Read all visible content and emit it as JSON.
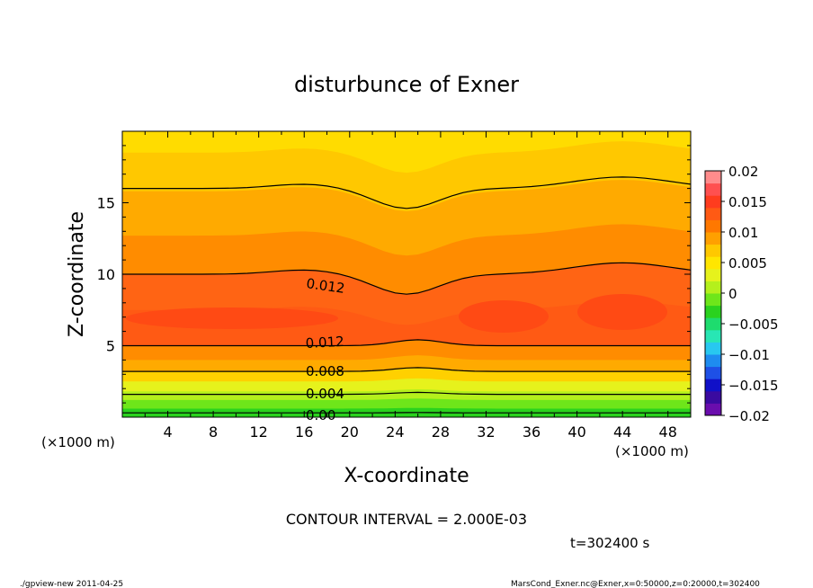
{
  "chart_data": {
    "type": "contour",
    "title": "disturbunce of Exner",
    "xlabel": "X-coordinate",
    "ylabel": "Z-coordinate",
    "x_unit_left": "(×1000 m)",
    "x_unit_right": "(×1000 m)",
    "x_ticks": [
      4,
      8,
      12,
      16,
      20,
      24,
      28,
      32,
      36,
      40,
      44,
      48
    ],
    "y_ticks": [
      5,
      10,
      15
    ],
    "xlim": [
      0,
      50
    ],
    "ylim": [
      0,
      20
    ],
    "colorbar": {
      "ticks": [
        "0.02",
        "0.015",
        "0.01",
        "0.005",
        "0",
        "−0.005",
        "−0.01",
        "−0.015",
        "−0.02"
      ],
      "range": [
        -0.02,
        0.02
      ],
      "colors": [
        "#6a0dad",
        "#3a0aa0",
        "#1010c8",
        "#1e50e6",
        "#1e8cf0",
        "#28c8f0",
        "#28e6b4",
        "#1edc6e",
        "#2ad21e",
        "#6ee61a",
        "#b4f01c",
        "#e6f21c",
        "#ffe600",
        "#ffc800",
        "#ffa000",
        "#ff7800",
        "#ff5a14",
        "#ff3c1e",
        "#ff5050",
        "#ff8c8c"
      ]
    },
    "contour_interval": "CONTOUR INTERVAL = 2.000E-03",
    "contour_labels": [
      "0.012",
      "0.012",
      "0.008",
      "0.004",
      "0.00"
    ],
    "time_label": "t=302400 s",
    "footer_left": "./gpview-new  2011-04-25",
    "footer_right": "MarsCond_Exner.nc@Exner,x=0:50000,z=0:20000,t=302400",
    "bands": [
      {
        "z_top": 20.0,
        "color": "#ffdc00"
      },
      {
        "z_top": 18.5,
        "color": "#ffc800"
      },
      {
        "z_top": 15.8,
        "color": "#ffaa00"
      },
      {
        "z_top": 12.7,
        "color": "#ff8c00"
      },
      {
        "z_top": 10.0,
        "color": "#ff6414"
      },
      {
        "z_top": 7.5,
        "color": "#ff5a14"
      },
      {
        "z_top": 5.0,
        "color": "#ff8c00"
      },
      {
        "z_top": 4.0,
        "color": "#ffaa00"
      },
      {
        "z_top": 3.2,
        "color": "#ffd000"
      },
      {
        "z_top": 2.5,
        "color": "#e6f21c"
      },
      {
        "z_top": 1.8,
        "color": "#b4f01c"
      },
      {
        "z_top": 1.2,
        "color": "#6ee61a"
      },
      {
        "z_top": 0.6,
        "color": "#2ad21e"
      }
    ],
    "contour_lines_z": [
      16.0,
      10.0,
      5.0,
      3.2,
      1.6,
      0.3
    ]
  }
}
